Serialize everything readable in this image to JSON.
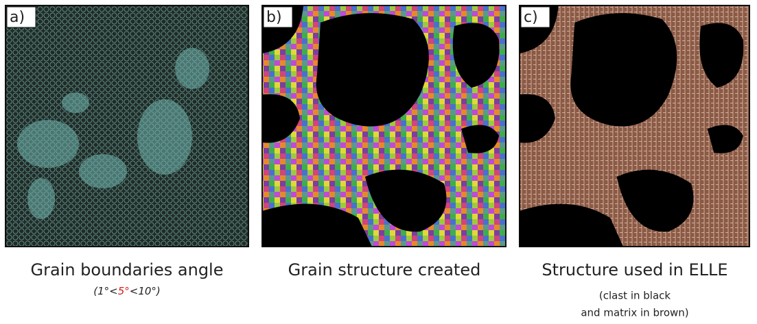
{
  "panels": [
    {
      "label": "a)",
      "caption": "Grain boundaries angle",
      "subcaption": [
        "(1°<",
        "5°",
        "<10°)"
      ]
    },
    {
      "label": "b)",
      "caption": "Grain structure created"
    },
    {
      "label": "c)",
      "caption": "Structure used in ELLE",
      "notes": [
        "(clast in black",
        "and matrix in brown)"
      ]
    }
  ]
}
